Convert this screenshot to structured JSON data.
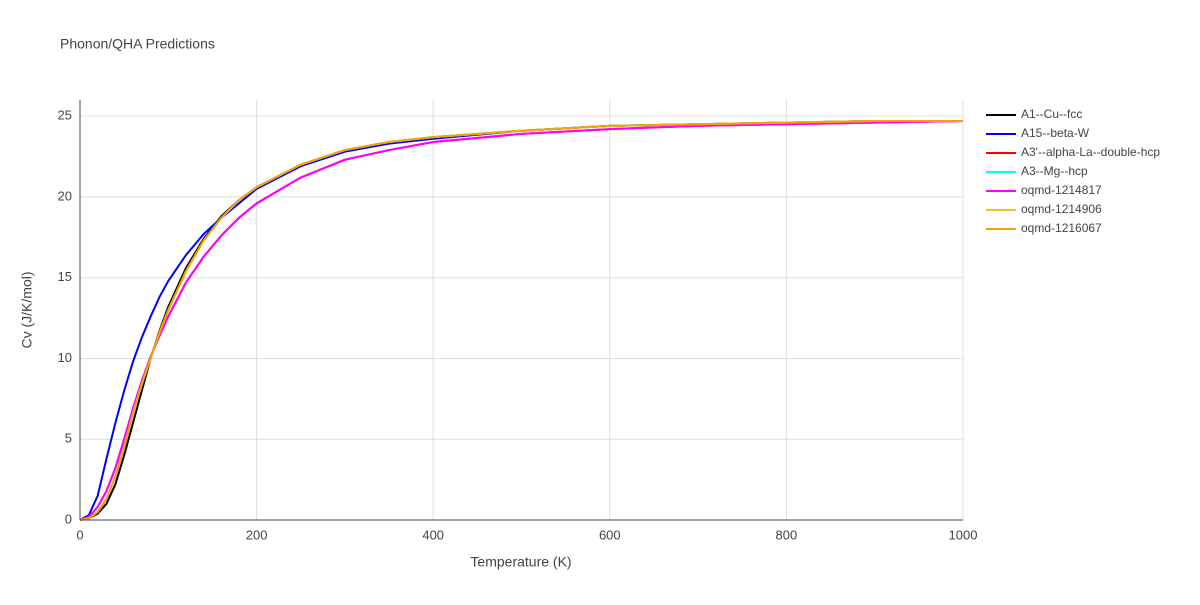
{
  "chart_data": {
    "type": "line",
    "title": "Phonon/QHA Predictions",
    "x_label": "Temperature (K)",
    "y_label": "Cv (J/K/mol)",
    "x": [
      0,
      10,
      20,
      30,
      40,
      50,
      60,
      70,
      80,
      90,
      100,
      120,
      140,
      160,
      180,
      200,
      250,
      300,
      350,
      400,
      500,
      600,
      700,
      800,
      900,
      1000
    ],
    "series": [
      {
        "name": "A1--Cu--fcc",
        "color": "#000000",
        "values": [
          0,
          0.1,
          0.4,
          1.0,
          2.2,
          4.0,
          6.0,
          8.0,
          10.0,
          11.7,
          13.2,
          15.6,
          17.4,
          18.8,
          19.8,
          20.6,
          22.0,
          22.9,
          23.4,
          23.7,
          24.1,
          24.4,
          24.5,
          24.6,
          24.7,
          24.7
        ]
      },
      {
        "name": "A15--beta-W",
        "color": "#0000ff",
        "values": [
          0,
          0.3,
          1.5,
          3.8,
          6.0,
          8.0,
          9.8,
          11.3,
          12.6,
          13.8,
          14.8,
          16.4,
          17.7,
          18.7,
          19.6,
          20.5,
          21.9,
          22.8,
          23.3,
          23.6,
          24.1,
          24.4,
          24.5,
          24.6,
          24.7,
          24.7
        ]
      },
      {
        "name": "A3'--alpha-La--double-hcp",
        "color": "#ff0000",
        "values": [
          0,
          0.2,
          0.8,
          1.8,
          3.2,
          5.0,
          6.9,
          8.6,
          10.1,
          11.4,
          12.6,
          14.7,
          16.3,
          17.6,
          18.7,
          19.6,
          21.2,
          22.3,
          22.9,
          23.4,
          23.9,
          24.2,
          24.4,
          24.5,
          24.6,
          24.7
        ]
      },
      {
        "name": "A3--Mg--hcp",
        "color": "#00ffff",
        "values": [
          0,
          0.1,
          0.5,
          1.3,
          2.7,
          4.5,
          6.6,
          8.4,
          10.0,
          11.6,
          13.0,
          15.4,
          17.3,
          18.7,
          19.8,
          20.6,
          22.0,
          22.9,
          23.4,
          23.7,
          24.1,
          24.4,
          24.5,
          24.6,
          24.7,
          24.7
        ]
      },
      {
        "name": "oqmd-1214817",
        "color": "#ff00ff",
        "values": [
          0,
          0.2,
          0.8,
          1.8,
          3.2,
          5.0,
          6.9,
          8.6,
          10.1,
          11.4,
          12.6,
          14.7,
          16.3,
          17.6,
          18.7,
          19.6,
          21.2,
          22.3,
          22.9,
          23.4,
          23.9,
          24.2,
          24.4,
          24.5,
          24.6,
          24.7
        ]
      },
      {
        "name": "oqmd-1214906",
        "color": "#fbbf24",
        "values": [
          0,
          0.1,
          0.5,
          1.3,
          2.7,
          4.5,
          6.6,
          8.4,
          10.0,
          11.6,
          13.0,
          15.4,
          17.3,
          18.7,
          19.8,
          20.6,
          22.0,
          22.9,
          23.4,
          23.7,
          24.1,
          24.4,
          24.5,
          24.6,
          24.7,
          24.7
        ]
      },
      {
        "name": "oqmd-1216067",
        "color": "#f5a300",
        "values": [
          0,
          0.1,
          0.5,
          1.3,
          2.7,
          4.5,
          6.6,
          8.4,
          10.0,
          11.6,
          13.0,
          15.4,
          17.3,
          18.7,
          19.8,
          20.6,
          22.0,
          22.9,
          23.4,
          23.7,
          24.1,
          24.4,
          24.5,
          24.6,
          24.7,
          24.7
        ]
      }
    ],
    "xlim": [
      0,
      1000
    ],
    "xticks": [
      0,
      200,
      400,
      600,
      800,
      1000
    ],
    "ylim": [
      0,
      26
    ],
    "yticks": [
      0,
      5,
      10,
      15,
      20,
      25
    ],
    "grid": true,
    "legend": "right"
  }
}
